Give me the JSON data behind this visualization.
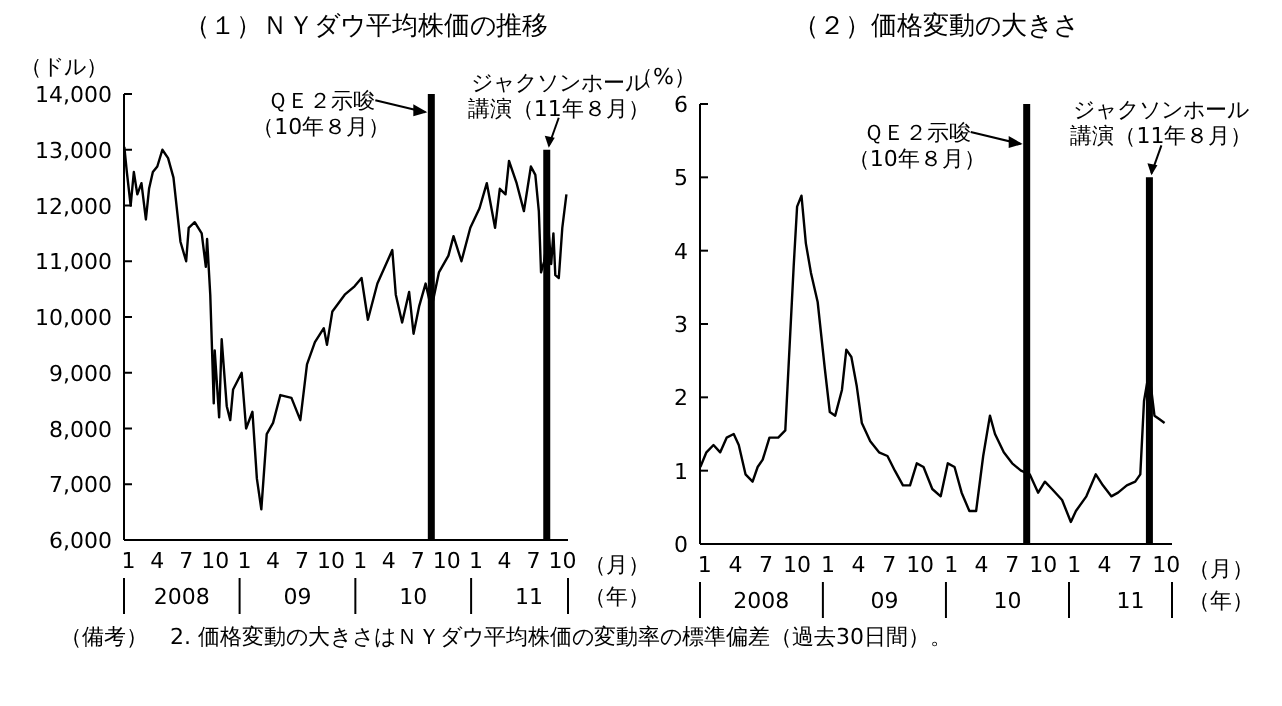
{
  "chart_data": [
    {
      "type": "line",
      "title": "（１）ＮＹダウ平均株価の推移",
      "ylabel": "（ドル）",
      "xlabel": "（月）",
      "x2label": "（年）",
      "color": "#000000",
      "x": [
        "2008-01-02",
        "2008-01-10",
        "2008-01-22",
        "2008-02-01",
        "2008-02-12",
        "2008-02-25",
        "2008-03-10",
        "2008-03-20",
        "2008-04-01",
        "2008-04-15",
        "2008-05-01",
        "2008-05-19",
        "2008-06-05",
        "2008-06-27",
        "2008-07-15",
        "2008-07-23",
        "2008-08-11",
        "2008-09-02",
        "2008-09-15",
        "2008-09-19",
        "2008-09-29",
        "2008-10-10",
        "2008-10-13",
        "2008-10-27",
        "2008-11-04",
        "2008-11-20",
        "2008-12-01",
        "2008-12-10",
        "2009-01-06",
        "2009-01-20",
        "2009-02-09",
        "2009-02-23",
        "2009-03-09",
        "2009-03-26",
        "2009-04-15",
        "2009-05-08",
        "2009-06-12",
        "2009-07-10",
        "2009-07-31",
        "2009-08-25",
        "2009-09-22",
        "2009-10-02",
        "2009-10-19",
        "2009-11-27",
        "2009-12-28",
        "2010-01-19",
        "2010-02-08",
        "2010-03-10",
        "2010-04-26",
        "2010-05-07",
        "2010-05-27",
        "2010-06-18",
        "2010-07-02",
        "2010-07-20",
        "2010-08-09",
        "2010-08-27",
        "2010-09-20",
        "2010-10-20",
        "2010-11-05",
        "2010-11-30",
        "2010-12-28",
        "2011-01-26",
        "2011-02-18",
        "2011-03-16",
        "2011-03-31",
        "2011-04-18",
        "2011-04-29",
        "2011-05-23",
        "2011-06-15",
        "2011-07-07",
        "2011-07-21",
        "2011-08-01",
        "2011-08-08",
        "2011-08-18",
        "2011-08-31",
        "2011-09-09",
        "2011-09-16",
        "2011-09-22",
        "2011-10-03",
        "2011-10-14",
        "2011-10-27"
      ],
      "values": [
        13050,
        12600,
        12000,
        12600,
        12200,
        12400,
        11750,
        12300,
        12600,
        12700,
        13000,
        12850,
        12500,
        11350,
        11000,
        11600,
        11700,
        11500,
        10900,
        11400,
        10400,
        8450,
        9400,
        8200,
        9600,
        8400,
        8150,
        8700,
        9000,
        8000,
        8300,
        7100,
        6550,
        7900,
        8100,
        8600,
        8550,
        8150,
        9150,
        9550,
        9800,
        9500,
        10100,
        10400,
        10550,
        10700,
        9950,
        10600,
        11200,
        10400,
        9900,
        10450,
        9700,
        10200,
        10600,
        10150,
        10800,
        11100,
        11450,
        11000,
        11600,
        11950,
        12400,
        11600,
        12300,
        12200,
        12800,
        12400,
        11900,
        12700,
        12550,
        11900,
        10800,
        11000,
        11600,
        10950,
        11500,
        10750,
        10700,
        11600,
        12200
      ],
      "xlim": [
        "2008-01-01",
        "2011-11-01"
      ],
      "x2lim": [
        "2008-01-01",
        "2011-11-01"
      ],
      "ylim": [
        6000,
        14000
      ],
      "yticks": [
        {
          "value": 6000,
          "label": "6,000"
        },
        {
          "value": 7000,
          "label": "7,000"
        },
        {
          "value": 8000,
          "label": "8,000"
        },
        {
          "value": 9000,
          "label": "9,000"
        },
        {
          "value": 10000,
          "label": "10,000"
        },
        {
          "value": 11000,
          "label": "11,000"
        },
        {
          "value": 12000,
          "label": "12,000"
        },
        {
          "value": 13000,
          "label": "13,000"
        },
        {
          "value": 14000,
          "label": "14,000"
        }
      ],
      "xticks": [
        {
          "value": "2008-01-15",
          "label": "1"
        },
        {
          "value": "2008-04-15",
          "label": "4"
        },
        {
          "value": "2008-07-15",
          "label": "7"
        },
        {
          "value": "2008-10-15",
          "label": "10"
        },
        {
          "value": "2009-01-15",
          "label": "1"
        },
        {
          "value": "2009-04-15",
          "label": "4"
        },
        {
          "value": "2009-07-15",
          "label": "7"
        },
        {
          "value": "2009-10-15",
          "label": "10"
        },
        {
          "value": "2010-01-15",
          "label": "1"
        },
        {
          "value": "2010-04-15",
          "label": "4"
        },
        {
          "value": "2010-07-15",
          "label": "7"
        },
        {
          "value": "2010-10-15",
          "label": "10"
        },
        {
          "value": "2011-01-15",
          "label": "1"
        },
        {
          "value": "2011-04-15",
          "label": "4"
        },
        {
          "value": "2011-07-15",
          "label": "7"
        },
        {
          "value": "2011-10-15",
          "label": "10"
        }
      ],
      "x2ticks": [
        {
          "value": "2008-07-01",
          "label": "2008"
        },
        {
          "value": "2009-07-01",
          "label": "09"
        },
        {
          "value": "2010-07-01",
          "label": "10"
        },
        {
          "value": "2011-07-01",
          "label": "11"
        }
      ],
      "ref_lines": [
        {
          "axis": "x",
          "value": "2010-08-27"
        },
        {
          "axis": "x",
          "value": "2011-08-26"
        }
      ],
      "annotations": [
        {
          "text": "ＱＥ２示唆（10年８月）",
          "x": "2010-08-27",
          "y": 13600
        },
        {
          "text": "ジャクソンホール講演（11年８月）",
          "x": "2011-08-26",
          "y": 13000
        },
        "（備考）　2. 価格変動の大きさはＮＹダウ平均株価の変動率の標準偏差（過去30日間）。"
      ]
    },
    {
      "type": "line",
      "title": "（２）価格変動の大きさ",
      "ylabel": "（%）",
      "xlabel": "（月）",
      "x2label": "（年）",
      "color": "#000000",
      "x": [
        "2008-01-02",
        "2008-01-20",
        "2008-02-10",
        "2008-03-01",
        "2008-03-20",
        "2008-04-10",
        "2008-04-25",
        "2008-05-15",
        "2008-06-05",
        "2008-06-20",
        "2008-07-05",
        "2008-07-25",
        "2008-08-20",
        "2008-09-10",
        "2008-09-25",
        "2008-10-05",
        "2008-10-15",
        "2008-10-28",
        "2008-11-10",
        "2008-11-25",
        "2008-12-15",
        "2009-01-05",
        "2009-01-20",
        "2009-02-05",
        "2009-02-25",
        "2009-03-10",
        "2009-03-25",
        "2009-04-10",
        "2009-04-25",
        "2009-05-20",
        "2009-06-15",
        "2009-07-10",
        "2009-08-01",
        "2009-08-25",
        "2009-09-15",
        "2009-10-05",
        "2009-10-25",
        "2009-11-20",
        "2009-12-15",
        "2010-01-05",
        "2010-01-25",
        "2010-02-15",
        "2010-03-10",
        "2010-03-30",
        "2010-04-20",
        "2010-05-10",
        "2010-05-25",
        "2010-06-20",
        "2010-07-15",
        "2010-08-10",
        "2010-09-05",
        "2010-09-30",
        "2010-10-20",
        "2010-11-10",
        "2010-12-10",
        "2011-01-05",
        "2011-01-20",
        "2011-02-20",
        "2011-03-20",
        "2011-04-10",
        "2011-05-05",
        "2011-05-25",
        "2011-06-20",
        "2011-07-15",
        "2011-07-30",
        "2011-08-10",
        "2011-08-25",
        "2011-09-10",
        "2011-09-25",
        "2011-10-10"
      ],
      "values": [
        1.05,
        1.25,
        1.35,
        1.25,
        1.45,
        1.5,
        1.35,
        0.95,
        0.85,
        1.05,
        1.15,
        1.45,
        1.45,
        1.55,
        2.9,
        3.8,
        4.6,
        4.75,
        4.1,
        3.7,
        3.3,
        2.4,
        1.8,
        1.75,
        2.1,
        2.65,
        2.55,
        2.15,
        1.65,
        1.4,
        1.25,
        1.2,
        1.0,
        0.8,
        0.8,
        1.1,
        1.05,
        0.75,
        0.65,
        1.1,
        1.05,
        0.7,
        0.45,
        0.45,
        1.2,
        1.75,
        1.5,
        1.25,
        1.1,
        1.0,
        0.95,
        0.7,
        0.85,
        0.75,
        0.6,
        0.3,
        0.45,
        0.65,
        0.95,
        0.8,
        0.65,
        0.7,
        0.8,
        0.85,
        0.95,
        1.95,
        2.35,
        1.75,
        1.7,
        1.65
      ],
      "xlim": [
        "2008-01-01",
        "2011-11-01"
      ],
      "x2lim": [
        "2008-01-01",
        "2011-11-01"
      ],
      "ylim": [
        0,
        6
      ],
      "yticks": [
        0,
        1,
        2,
        3,
        4,
        5,
        6
      ],
      "xticks": [
        {
          "value": "2008-01-15",
          "label": "1"
        },
        {
          "value": "2008-04-15",
          "label": "4"
        },
        {
          "value": "2008-07-15",
          "label": "7"
        },
        {
          "value": "2008-10-15",
          "label": "10"
        },
        {
          "value": "2009-01-15",
          "label": "1"
        },
        {
          "value": "2009-04-15",
          "label": "4"
        },
        {
          "value": "2009-07-15",
          "label": "7"
        },
        {
          "value": "2009-10-15",
          "label": "10"
        },
        {
          "value": "2010-01-15",
          "label": "1"
        },
        {
          "value": "2010-04-15",
          "label": "4"
        },
        {
          "value": "2010-07-15",
          "label": "7"
        },
        {
          "value": "2010-10-15",
          "label": "10"
        },
        {
          "value": "2011-01-15",
          "label": "1"
        },
        {
          "value": "2011-04-15",
          "label": "4"
        },
        {
          "value": "2011-07-15",
          "label": "7"
        },
        {
          "value": "2011-10-15",
          "label": "10"
        }
      ],
      "x2ticks": [
        {
          "value": "2008-07-01",
          "label": "2008"
        },
        {
          "value": "2009-07-01",
          "label": "09"
        },
        {
          "value": "2010-07-01",
          "label": "10"
        },
        {
          "value": "2011-07-01",
          "label": "11"
        }
      ],
      "ref_lines": [
        {
          "axis": "x",
          "value": "2010-08-27"
        },
        {
          "axis": "x",
          "value": "2011-08-26"
        }
      ],
      "annotations": [
        {
          "text": "ＱＥ２示唆（10年８月）",
          "x": "2010-08-27",
          "y": 5.4
        },
        {
          "text": "ジャクソンホール講演（11年８月）",
          "x": "2011-08-26",
          "y": 5.0
        }
      ]
    }
  ]
}
